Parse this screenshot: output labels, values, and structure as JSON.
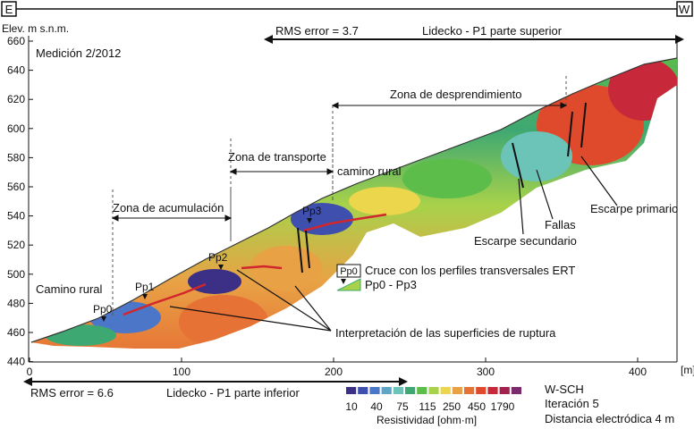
{
  "header": {
    "left_box": "E",
    "right_box": "W"
  },
  "y_axis": {
    "label": "Elev. m s.n.m.",
    "ticks": [
      "660",
      "640",
      "620",
      "600",
      "580",
      "560",
      "540",
      "520",
      "500",
      "480",
      "460",
      "440"
    ]
  },
  "x_axis": {
    "ticks": [
      "0",
      "100",
      "200",
      "300",
      "400"
    ],
    "unit": "[m]"
  },
  "measurement": "Medición 2/2012",
  "top_section": {
    "rms": "RMS error = 3.7",
    "title": "Lidecko - P1 parte superior"
  },
  "bottom_section": {
    "rms": "RMS error = 6.6",
    "title": "Lidecko - P1 parte inferior"
  },
  "zones": {
    "desprendimiento": "Zona de desprendimiento",
    "transporte": "Zona de transporte",
    "acumulacion": "Zona de acumulación"
  },
  "annotations": {
    "camino_rural_upper": "camino rural",
    "camino_rural_lower": "Camino rural",
    "escarpe_primario": "Escarpe primario",
    "fallas": "Fallas",
    "escarpe_secundario": "Escarpe secundario",
    "interpretacion": "Interpretación de las superficies de ruptura"
  },
  "points": [
    "Pp0",
    "Pp1",
    "Pp2",
    "Pp3"
  ],
  "legend_cross": {
    "badge": "Pp0",
    "line1": "Cruce con los perfiles transversales ERT",
    "line2": "Pp0 - Pp3"
  },
  "resistivity": {
    "ticks": [
      "10",
      "40",
      "75",
      "115",
      "250",
      "450",
      "1790"
    ],
    "label": "Resistividad [ohm·m]",
    "colors": [
      "#3c2f86",
      "#3f4fae",
      "#4c77c8",
      "#5fa5c8",
      "#6cc3b8",
      "#3ea872",
      "#5cbd4a",
      "#a8d24a",
      "#ecd64c",
      "#e8a245",
      "#e67235",
      "#e04a2c",
      "#c7283a",
      "#a3214f",
      "#7b2a6b"
    ]
  },
  "info": {
    "line1": "W-SCH",
    "line2": "Iteración 5",
    "line3": "Distancia electródica 4 m"
  }
}
